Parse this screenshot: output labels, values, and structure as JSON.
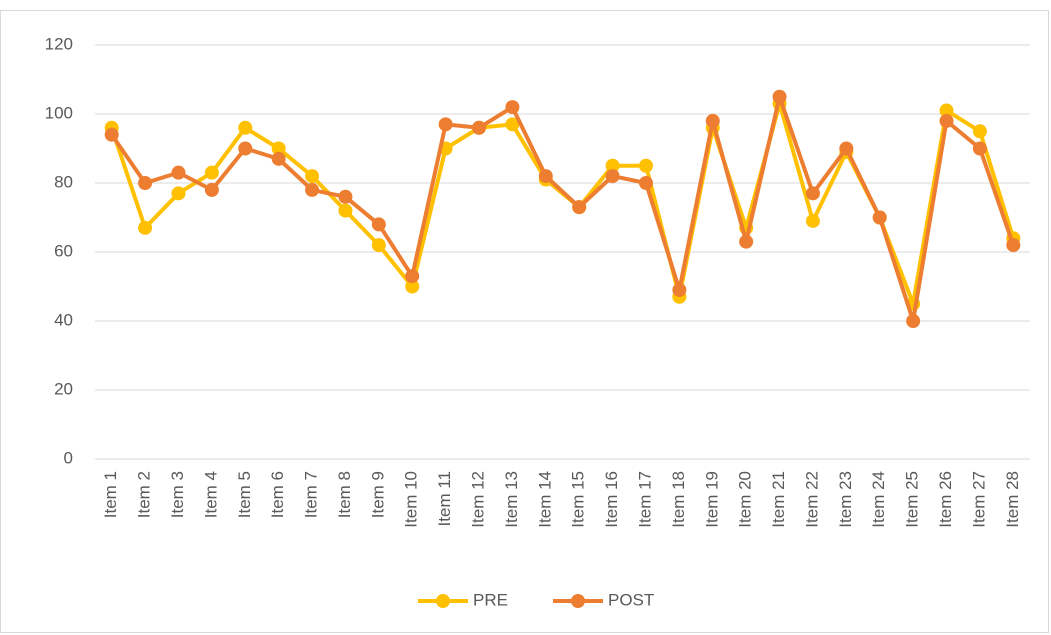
{
  "chart_data": {
    "type": "line",
    "categories": [
      "Item 1",
      "Item 2",
      "Item 3",
      "Item 4",
      "Item 5",
      "Item 6",
      "Item 7",
      "Item 8",
      "Item 9",
      "Item 10",
      "Item 11",
      "Item 12",
      "Item 13",
      "Item 14",
      "Item 15",
      "Item 16",
      "Item 17",
      "Item 18",
      "Item 19",
      "Item 20",
      "Item 21",
      "Item 22",
      "Item 23",
      "Item 24",
      "Item 25",
      "Item 26",
      "Item 27",
      "Item 28"
    ],
    "series": [
      {
        "name": "PRE",
        "color": "#FFC000",
        "values": [
          96,
          67,
          77,
          83,
          96,
          90,
          82,
          72,
          62,
          50,
          90,
          96,
          97,
          81,
          73,
          85,
          85,
          47,
          96,
          67,
          103,
          69,
          89,
          70,
          45,
          101,
          95,
          64
        ]
      },
      {
        "name": "POST",
        "color": "#ED7D31",
        "values": [
          94,
          80,
          83,
          78,
          90,
          87,
          78,
          76,
          68,
          53,
          97,
          96,
          102,
          82,
          73,
          82,
          80,
          49,
          98,
          63,
          105,
          77,
          90,
          70,
          40,
          98,
          90,
          62
        ]
      }
    ],
    "ylim": [
      0,
      120
    ],
    "yticks": [
      0,
      20,
      40,
      60,
      80,
      100,
      120
    ],
    "grid": true,
    "legend": "bottom"
  }
}
